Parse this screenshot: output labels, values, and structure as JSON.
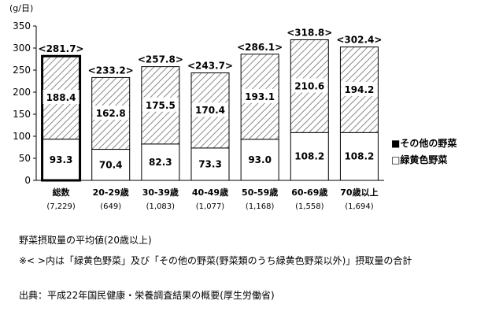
{
  "chart_data": {
    "type": "bar",
    "stacked": true,
    "unit": "(g/日)",
    "ylim": [
      0,
      350
    ],
    "yticks": [
      0,
      50,
      100,
      150,
      200,
      250,
      300,
      350
    ],
    "grid": false,
    "legend_position": "right",
    "categories": [
      "総数",
      "20-29歳",
      "30-39歳",
      "40-49歳",
      "50-59歳",
      "60-69歳",
      "70歳以上"
    ],
    "sample_sizes": [
      "(7,229)",
      "(649)",
      "(1,083)",
      "(1,077)",
      "(1,168)",
      "(1,558)",
      "(1,694)"
    ],
    "series": [
      {
        "name": "緑黄色野菜",
        "values": [
          93.3,
          70.4,
          82.3,
          73.3,
          93.0,
          108.2,
          108.2
        ],
        "labels": [
          "93.3",
          "70.4",
          "82.3",
          "73.3",
          "93.0",
          "108.2",
          "108.2"
        ],
        "fill": "#ffffff"
      },
      {
        "name": "その他の野菜",
        "values": [
          188.4,
          162.8,
          175.5,
          170.4,
          193.1,
          210.6,
          194.2
        ],
        "labels": [
          "188.4",
          "162.8",
          "175.5",
          "170.4",
          "193.1",
          "210.6",
          "194.2"
        ],
        "fill": "hatch"
      }
    ],
    "totals": [
      281.7,
      233.2,
      257.8,
      243.7,
      286.1,
      318.8,
      302.4
    ],
    "total_labels": [
      "<281.7>",
      "<233.2>",
      "<257.8>",
      "<243.7>",
      "<286.1>",
      "<318.8>",
      "<302.4>"
    ],
    "highlight_index": 0
  },
  "legend": {
    "items": [
      {
        "marker": "■",
        "label": "その他の野菜"
      },
      {
        "marker": "□",
        "label": "緑黄色野菜"
      }
    ]
  },
  "notes": {
    "line1": "野菜摂取量の平均値(20歳以上)",
    "line2": "※< >内は「緑黄色野菜」及び「その他の野菜(野菜類のうち緑黄色野菜以外)」摂取量の合計",
    "source": "出典：平成22年国民健康・栄養調査結果の概要(厚生労働省)"
  }
}
